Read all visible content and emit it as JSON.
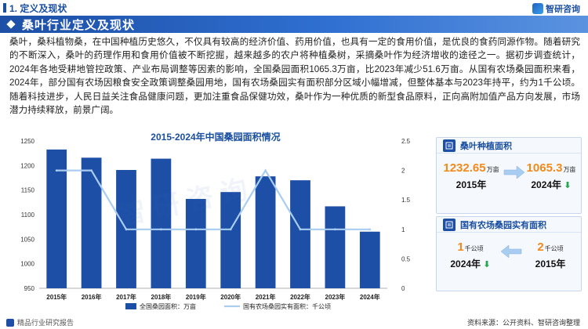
{
  "header": {
    "section_title": "1. 定义及现状",
    "logo_text": "智研咨询",
    "band_title": "桑叶行业定义及现状"
  },
  "body_text": "桑叶，桑科植物桑，在中国种植历史悠久，不仅具有较高的经济价值、药用价值，也具有一定的食用价值，是优良的食药同源作物。随着研究的不断深入，桑叶的药理作用和食用价值被不断挖掘，越来越多的农户将种植桑树，采摘桑叶作为经济增收的途径之一。据初步调查统计，2024年各地受耕地管控政策、产业布局调整等因素的影响，全国桑园面积1065.3万亩，比2023年减少51.6万亩。从国有农场桑园面积来看，2024年，部分国有农场因粮食安全政策调整桑园用地，国有农场桑园实有面积部分区域小幅增减，但整体基本与2023年持平，约为1千公顷。随着科技进步，人民日益关注食品健康问题，更加注重食品保健功效，桑叶作为一种优质的新型食品原料，正向高附加值产品方向发展，市场潜力持续释放，前景广阔。",
  "watermark": "智研咨询",
  "chart_data": {
    "type": "bar+line",
    "title": "2015-2024年中国桑园面积情况",
    "categories": [
      "2015年",
      "2016年",
      "2017年",
      "2018年",
      "2019年",
      "2020年",
      "2021年",
      "2022年",
      "2023年",
      "2024年"
    ],
    "series": [
      {
        "name": "全国桑园面积：万亩",
        "type": "bar",
        "axis": "left",
        "values": [
          1232.65,
          1216,
          1191,
          1214,
          1132,
          1146,
          1178,
          1170,
          1116.9,
          1065.3
        ]
      },
      {
        "name": "国有农场桑园实有面积：千公顷",
        "type": "line",
        "axis": "right",
        "values": [
          2,
          2,
          1,
          1,
          1,
          1,
          2,
          1,
          1,
          1
        ]
      }
    ],
    "y_left": {
      "min": 950,
      "max": 1250,
      "ticks": [
        950,
        1000,
        1050,
        1100,
        1150,
        1200,
        1250
      ]
    },
    "y_right": {
      "min": 0,
      "max": 2.5,
      "ticks": [
        0,
        0.5,
        1,
        1.5,
        2,
        2.5
      ]
    },
    "colors": {
      "bar": "#1d4fa6",
      "line": "#a9cdf0"
    }
  },
  "card_mulberry_area": {
    "title": "桑叶种植面积",
    "from_value": "1232.65",
    "from_unit": "万亩",
    "from_year": "2015年",
    "to_value": "1065.3",
    "to_unit": "万亩",
    "to_year": "2024年",
    "trend": "down"
  },
  "card_state_farm": {
    "title": "国有农场桑园实有面积",
    "left_value": "1",
    "left_unit": "千公顷",
    "left_year": "2024年",
    "right_value": "2",
    "right_unit": "千公顷",
    "right_year": "2015年",
    "trend": "down"
  },
  "colors": {
    "primary": "#1a4fa0",
    "accent_orange": "#f28a1a",
    "down_green": "#22a84a"
  },
  "footer": {
    "brand": "精品行业研究报告",
    "source": "资料来源：公开资料、智研咨询整理"
  }
}
